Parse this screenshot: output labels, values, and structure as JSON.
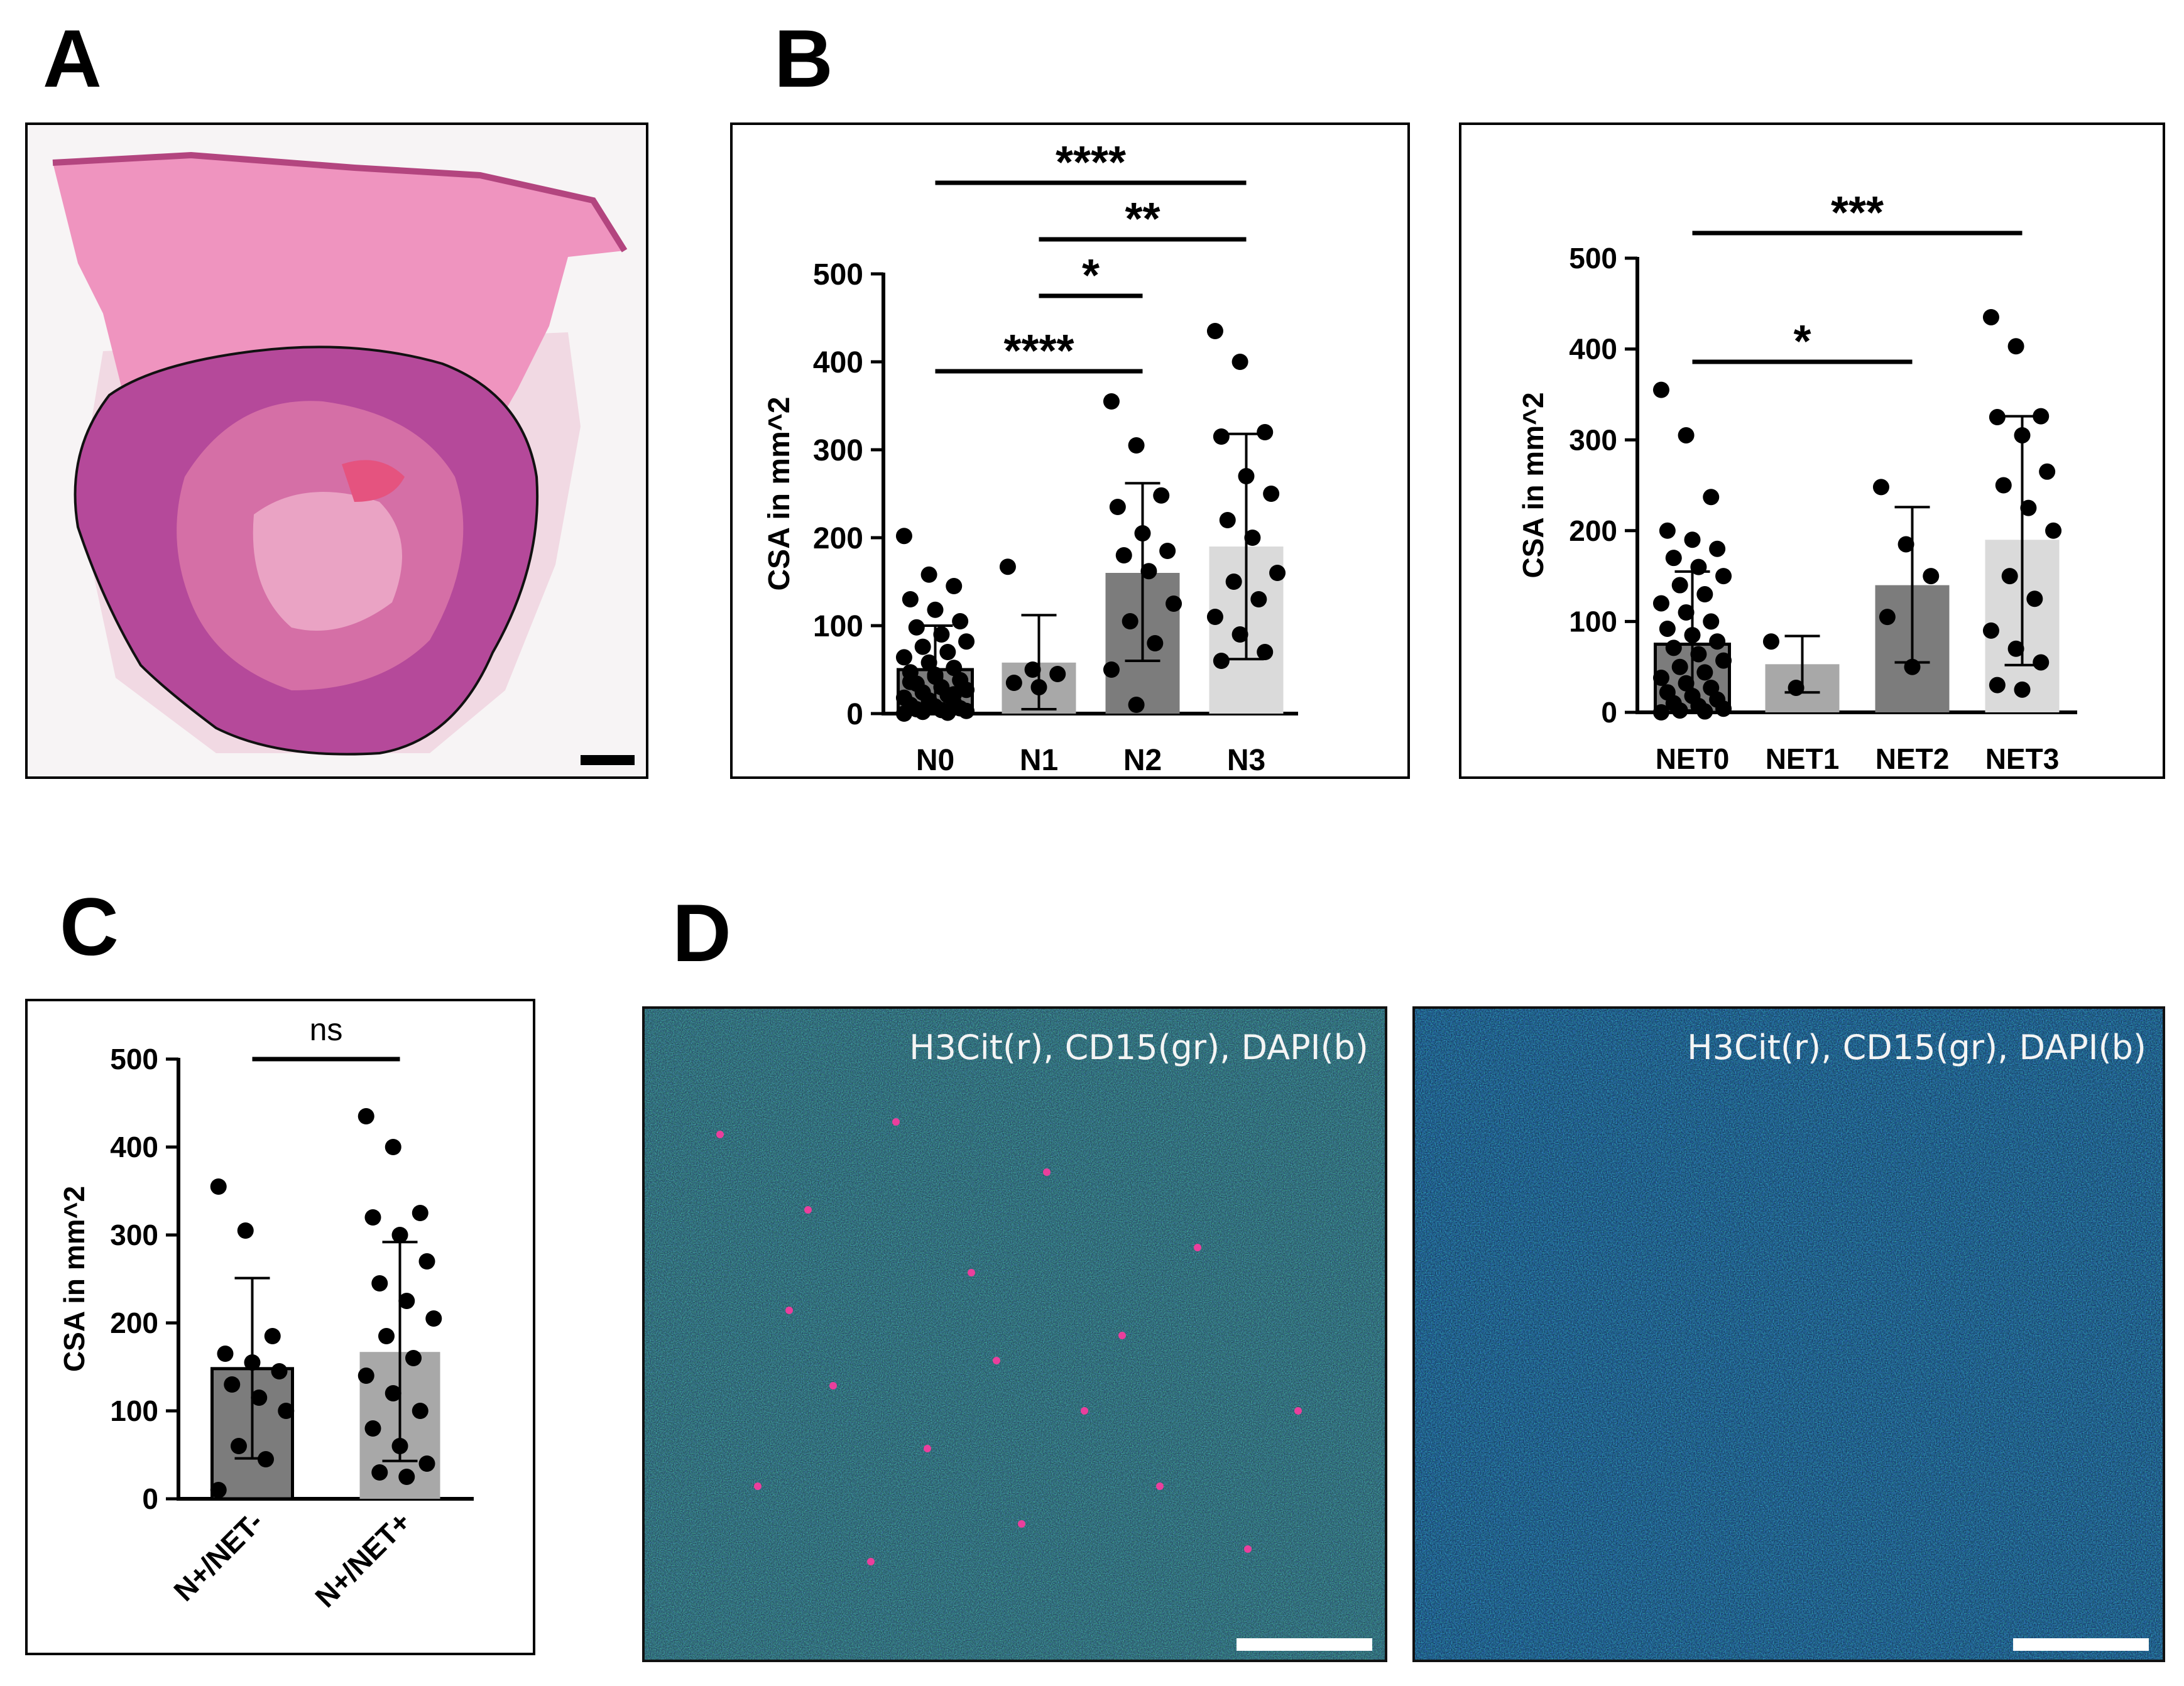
{
  "panels": {
    "a": "A",
    "b": "B",
    "c": "C",
    "d": "D"
  },
  "colors": {
    "dark_bar": "#7c7c7c",
    "mid_bar": "#a8a8a8",
    "light_bar": "#dadada",
    "dot": "#000000",
    "he_tissue": "#e58ab6",
    "he_tumor": "#b5499a"
  },
  "chart_data": [
    {
      "id": "B-left",
      "type": "bar",
      "ylabel": "CSA in mm^2",
      "ylim": [
        0,
        500
      ],
      "yticks": [
        0,
        100,
        200,
        300,
        400,
        500
      ],
      "categories": [
        "N0",
        "N1",
        "N2",
        "N3"
      ],
      "means": [
        50,
        58,
        160,
        190
      ],
      "sd_lower": [
        5,
        5,
        60,
        62
      ],
      "sd_upper": [
        100,
        112,
        262,
        318
      ],
      "points": [
        [
          202,
          158,
          145,
          130,
          118,
          105,
          98,
          90,
          82,
          76,
          70,
          64,
          58,
          52,
          47,
          42,
          38,
          34,
          30,
          27,
          24,
          21,
          18,
          15,
          12,
          10,
          8,
          6,
          5,
          4,
          3,
          2,
          1,
          0,
          14,
          22,
          36,
          44
        ],
        [
          167,
          50,
          45,
          35,
          30
        ],
        [
          355,
          305,
          248,
          235,
          205,
          185,
          180,
          162,
          125,
          105,
          80,
          50,
          10
        ],
        [
          435,
          400,
          320,
          315,
          270,
          250,
          220,
          200,
          160,
          150,
          130,
          110,
          90,
          70,
          60
        ]
      ],
      "comparisons": [
        {
          "from": "N0",
          "to": "N3",
          "label": "****"
        },
        {
          "from": "N1",
          "to": "N3",
          "label": "**"
        },
        {
          "from": "N1",
          "to": "N2",
          "label": "*"
        },
        {
          "from": "N0",
          "to": "N2",
          "label": "****"
        }
      ]
    },
    {
      "id": "B-right",
      "type": "bar",
      "ylabel": "CSA in mm^2",
      "ylim": [
        0,
        500
      ],
      "yticks": [
        0,
        100,
        200,
        300,
        400,
        500
      ],
      "categories": [
        "NET0",
        "NET1",
        "NET2",
        "NET3"
      ],
      "means": [
        75,
        53,
        140,
        190
      ],
      "sd_lower": [
        2,
        22,
        55,
        52
      ],
      "sd_upper": [
        155,
        84,
        226,
        326
      ],
      "points": [
        [
          355,
          305,
          237,
          200,
          190,
          180,
          170,
          160,
          150,
          140,
          130,
          120,
          110,
          100,
          92,
          85,
          78,
          71,
          64,
          57,
          50,
          44,
          38,
          32,
          27,
          22,
          18,
          14,
          10,
          7,
          4,
          2,
          1,
          0
        ],
        [
          78,
          27
        ],
        [
          248,
          185,
          150,
          105,
          50
        ],
        [
          435,
          403,
          326,
          325,
          305,
          265,
          250,
          225,
          200,
          150,
          125,
          90,
          70,
          55,
          30,
          25
        ]
      ],
      "comparisons": [
        {
          "from": "NET0",
          "to": "NET3",
          "label": "***"
        },
        {
          "from": "NET0",
          "to": "NET2",
          "label": "*"
        }
      ]
    },
    {
      "id": "C",
      "type": "bar",
      "ylabel": "CSA in mm^2",
      "ylim": [
        0,
        500
      ],
      "yticks": [
        0,
        100,
        200,
        300,
        400,
        500
      ],
      "categories": [
        "N+/NET-",
        "N+/NET+"
      ],
      "means": [
        148,
        167
      ],
      "sd_lower": [
        46,
        43
      ],
      "sd_upper": [
        251,
        292
      ],
      "points": [
        [
          355,
          305,
          185,
          165,
          155,
          145,
          130,
          115,
          100,
          60,
          45,
          10
        ],
        [
          435,
          400,
          325,
          320,
          300,
          270,
          245,
          225,
          205,
          185,
          160,
          140,
          120,
          100,
          80,
          60,
          40,
          30,
          25
        ]
      ],
      "comparisons": [
        {
          "from": "N+/NET-",
          "to": "N+/NET+",
          "label": "ns"
        }
      ]
    }
  ],
  "micrographs": [
    {
      "label": "H3Cit(r), CD15(gr), DAPI(b)"
    },
    {
      "label": "H3Cit(r), CD15(gr), DAPI(b)"
    }
  ]
}
